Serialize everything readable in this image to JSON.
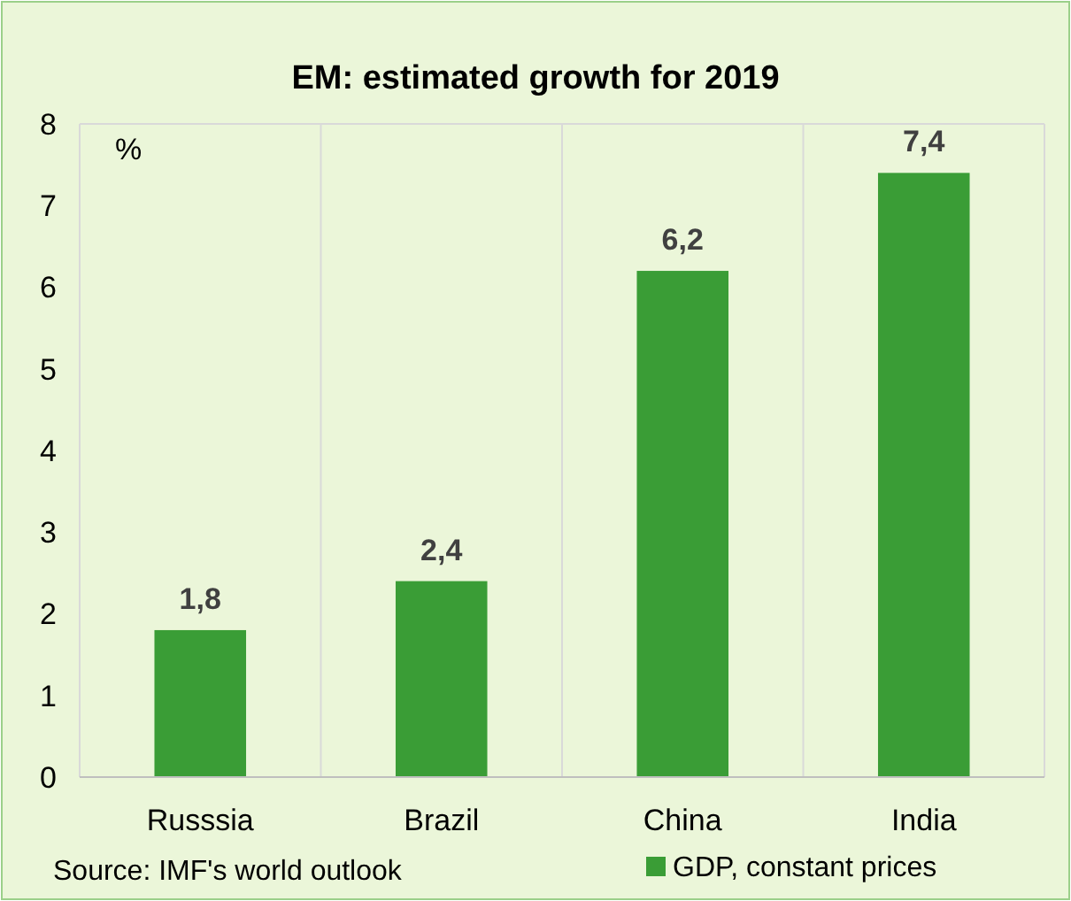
{
  "chart_data": {
    "type": "bar",
    "title": "EM: estimated growth for 2019",
    "ylabel": "%",
    "categories": [
      "Russsia",
      "Brazil",
      "China",
      "India"
    ],
    "series": [
      {
        "name": "GDP, constant prices",
        "color": "#3a9d36",
        "values": [
          1.8,
          2.4,
          6.2,
          7.4
        ],
        "value_labels": [
          "1,8",
          "2,4",
          "6,2",
          "7,4"
        ]
      }
    ],
    "ylim": [
      0,
      8
    ],
    "yticks": [
      0,
      1,
      2,
      3,
      4,
      5,
      6,
      7,
      8
    ],
    "grid": "x",
    "legend": "bottom right",
    "annotations": [
      "Source: IMF's world outlook"
    ]
  }
}
